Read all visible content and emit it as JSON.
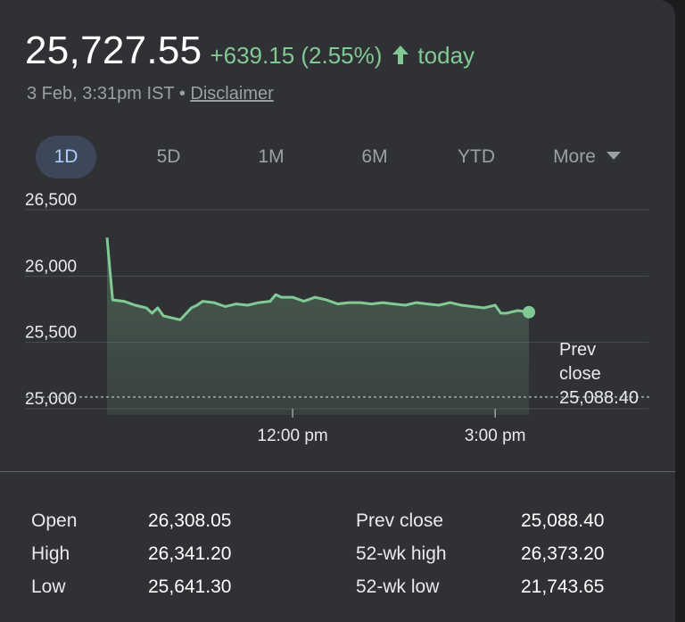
{
  "quote": {
    "price": "25,727.55",
    "change": "+639.15 (2.55%)",
    "change_color": "#81c995",
    "arrow_icon": "arrow-up-icon",
    "period": "today",
    "timestamp": "3 Feb, 3:31pm IST",
    "separator": "•",
    "disclaimer": "Disclaimer"
  },
  "tabs": [
    {
      "label": "1D",
      "active": true
    },
    {
      "label": "5D",
      "active": false
    },
    {
      "label": "1M",
      "active": false
    },
    {
      "label": "6M",
      "active": false
    },
    {
      "label": "YTD",
      "active": false
    },
    {
      "label": "More",
      "active": false,
      "icon": "caret-down-icon"
    }
  ],
  "chart_data": {
    "type": "area",
    "y_ticks": [
      "26,500",
      "26,000",
      "25,500",
      "25,000"
    ],
    "y_tick_values": [
      26500,
      26000,
      25500,
      25000
    ],
    "ylim": [
      25000,
      26500
    ],
    "x_ticks": [
      "12:00 pm",
      "3:00 pm"
    ],
    "x_tick_values": [
      "12:00",
      "15:00"
    ],
    "xlim": [
      "09:15",
      "15:30"
    ],
    "grid": true,
    "line_color": "#81c995",
    "prev_close": {
      "label_line1": "Prev",
      "label_line2": "close",
      "value_text": "25,088.40",
      "value": 25088.4
    },
    "x": [
      "09:15",
      "09:20",
      "09:30",
      "09:40",
      "09:50",
      "09:55",
      "10:00",
      "10:05",
      "10:10",
      "10:20",
      "10:30",
      "10:35",
      "10:40",
      "10:50",
      "11:00",
      "11:10",
      "11:20",
      "11:30",
      "11:40",
      "11:45",
      "11:50",
      "12:00",
      "12:10",
      "12:20",
      "12:30",
      "12:40",
      "12:50",
      "13:00",
      "13:10",
      "13:20",
      "13:30",
      "13:40",
      "13:50",
      "14:00",
      "14:10",
      "14:20",
      "14:30",
      "14:40",
      "14:50",
      "15:00",
      "15:05",
      "15:10",
      "15:20",
      "15:30"
    ],
    "values": [
      26290,
      25820,
      25810,
      25780,
      25760,
      25720,
      25760,
      25700,
      25690,
      25670,
      25760,
      25780,
      25810,
      25800,
      25770,
      25790,
      25780,
      25800,
      25810,
      25860,
      25840,
      25840,
      25810,
      25840,
      25820,
      25790,
      25800,
      25800,
      25790,
      25800,
      25790,
      25780,
      25800,
      25790,
      25780,
      25800,
      25780,
      25770,
      25760,
      25780,
      25720,
      25720,
      25740,
      25727.55
    ]
  },
  "stats": {
    "left": [
      {
        "label": "Open",
        "value": "26,308.05"
      },
      {
        "label": "High",
        "value": "26,341.20"
      },
      {
        "label": "Low",
        "value": "25,641.30"
      }
    ],
    "right": [
      {
        "label": "Prev close",
        "value": "25,088.40"
      },
      {
        "label": "52-wk high",
        "value": "26,373.20"
      },
      {
        "label": "52-wk low",
        "value": "21,743.65"
      }
    ]
  }
}
